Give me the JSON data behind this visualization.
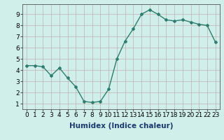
{
  "x": [
    0,
    1,
    2,
    3,
    4,
    5,
    6,
    7,
    8,
    9,
    10,
    11,
    12,
    13,
    14,
    15,
    16,
    17,
    18,
    19,
    20,
    21,
    22,
    23
  ],
  "y": [
    4.4,
    4.4,
    4.3,
    3.5,
    4.2,
    3.3,
    2.5,
    1.2,
    1.1,
    1.2,
    2.3,
    5.0,
    6.6,
    7.7,
    9.0,
    9.4,
    9.0,
    8.5,
    8.4,
    8.5,
    8.3,
    8.1,
    8.0,
    6.5
  ],
  "line_color": "#2e7d6e",
  "marker": "D",
  "marker_size": 2.0,
  "bg_color": "#d0efea",
  "grid_color": "#c0b0b0",
  "axis_bg": "#d0efea",
  "xlabel": "Humidex (Indice chaleur)",
  "xlim": [
    -0.5,
    23.5
  ],
  "ylim": [
    0.5,
    9.9
  ],
  "yticks": [
    1,
    2,
    3,
    4,
    5,
    6,
    7,
    8,
    9
  ],
  "xticks": [
    0,
    1,
    2,
    3,
    4,
    5,
    6,
    7,
    8,
    9,
    10,
    11,
    12,
    13,
    14,
    15,
    16,
    17,
    18,
    19,
    20,
    21,
    22,
    23
  ],
  "xlabel_fontsize": 7.5,
  "tick_fontsize": 6.5,
  "line_width": 1.0
}
